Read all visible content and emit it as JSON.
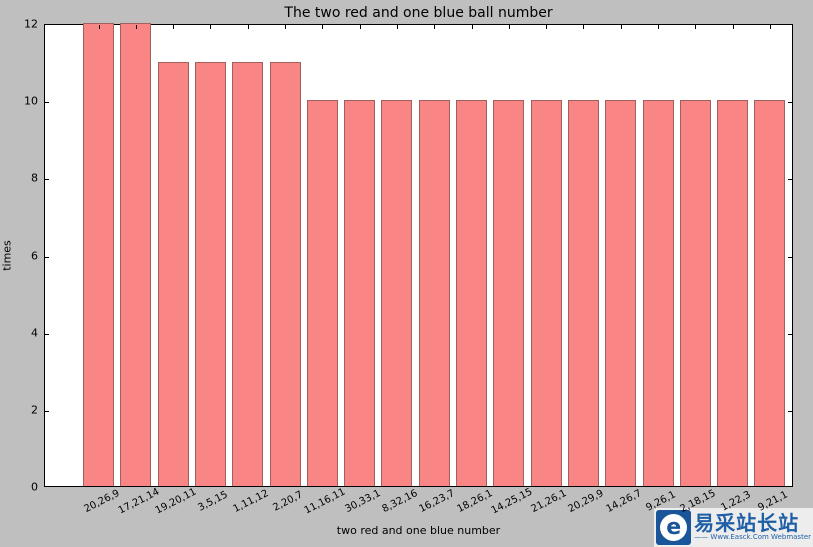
{
  "chart_data": {
    "type": "bar",
    "title": "The two red and one blue ball number",
    "xlabel": "two red and one blue number",
    "ylabel": "times",
    "categories": [
      "20,26,9",
      "17,21,14",
      "19,20,11",
      "3,5,15",
      "1,11,12",
      "2,20,7",
      "11,16,11",
      "30,33,1",
      "8,32,16",
      "16,23,7",
      "18,26,1",
      "14,25,15",
      "21,26,1",
      "20,29,9",
      "14,26,7",
      "9,26,1",
      "2,18,15",
      "1,22,3",
      "9,21,1"
    ],
    "values": [
      12,
      12,
      11,
      11,
      11,
      11,
      10,
      10,
      10,
      10,
      10,
      10,
      10,
      10,
      10,
      10,
      10,
      10,
      10
    ],
    "ylim": [
      0,
      12
    ],
    "yticks": [
      0,
      2,
      4,
      6,
      8,
      10,
      12
    ],
    "grid": false,
    "legend": null,
    "bar_color": "#fa8585",
    "bar_edge_color": "#a06060",
    "figure_bg": "#bfbfbf",
    "plot_bg": "#ffffff",
    "x_tick_label_rotation_deg": 27
  },
  "watermark": {
    "site_name": "易采站长站",
    "subtitle": "—— Www.Easck.Com Webmaster",
    "logo_glyph": "e",
    "brand_color": "#1a5499",
    "text_color": "#1e5fa6"
  }
}
